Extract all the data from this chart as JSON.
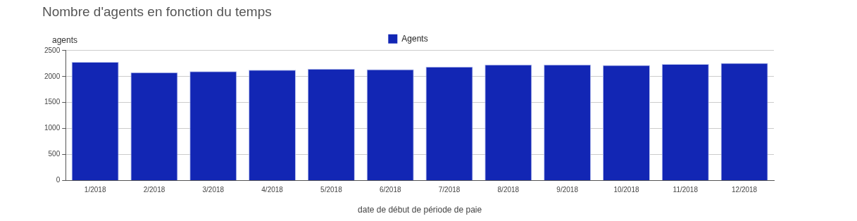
{
  "chart_data": {
    "type": "bar",
    "title": "Nombre d'agents en fonction du temps",
    "xlabel": "date de début de période de paie",
    "ylabel": "agents",
    "categories": [
      "1/2018",
      "2/2018",
      "3/2018",
      "4/2018",
      "5/2018",
      "6/2018",
      "7/2018",
      "8/2018",
      "9/2018",
      "10/2018",
      "11/2018",
      "12/2018"
    ],
    "series": [
      {
        "name": "Agents",
        "color": "#1226b4",
        "values": [
          2280,
          2080,
          2100,
          2130,
          2150,
          2140,
          2190,
          2230,
          2230,
          2220,
          2240,
          2260
        ]
      }
    ],
    "ylim": [
      0,
      2500
    ],
    "yticks": [
      0,
      500,
      1000,
      1500,
      2000,
      2500
    ],
    "grid": "y",
    "legend": "top"
  }
}
